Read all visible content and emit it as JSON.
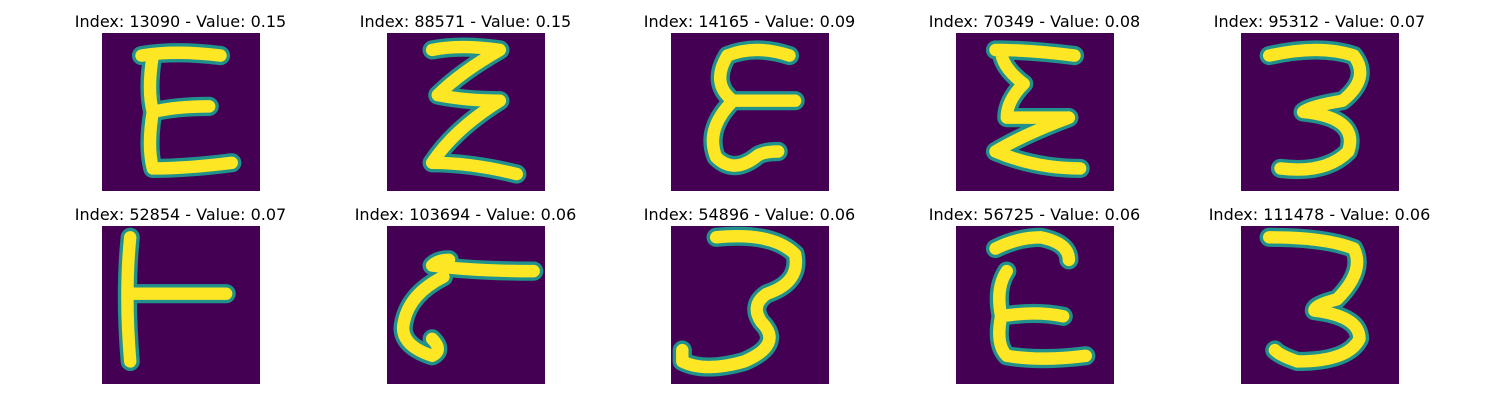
{
  "background_color": "#440154",
  "stroke_color": "#fde725",
  "edge_color": "#21918c",
  "panels": [
    {
      "title": "Index: 13090 - Value: 0.15",
      "glyph": "E"
    },
    {
      "title": "Index: 88571 - Value: 0.15",
      "glyph": "E"
    },
    {
      "title": "Index: 14165 - Value: 0.09",
      "glyph": "E"
    },
    {
      "title": "Index: 70349 - Value: 0.08",
      "glyph": "E"
    },
    {
      "title": "Index: 95312 - Value: 0.07",
      "glyph": "3"
    },
    {
      "title": "Index: 52854 - Value: 0.07",
      "glyph": "T"
    },
    {
      "title": "Index: 103694 - Value: 0.06",
      "glyph": "hook"
    },
    {
      "title": "Index: 54896 - Value: 0.06",
      "glyph": "3"
    },
    {
      "title": "Index: 56725 - Value: 0.06",
      "glyph": "E"
    },
    {
      "title": "Index: 111478 - Value: 0.06",
      "glyph": "3"
    }
  ]
}
